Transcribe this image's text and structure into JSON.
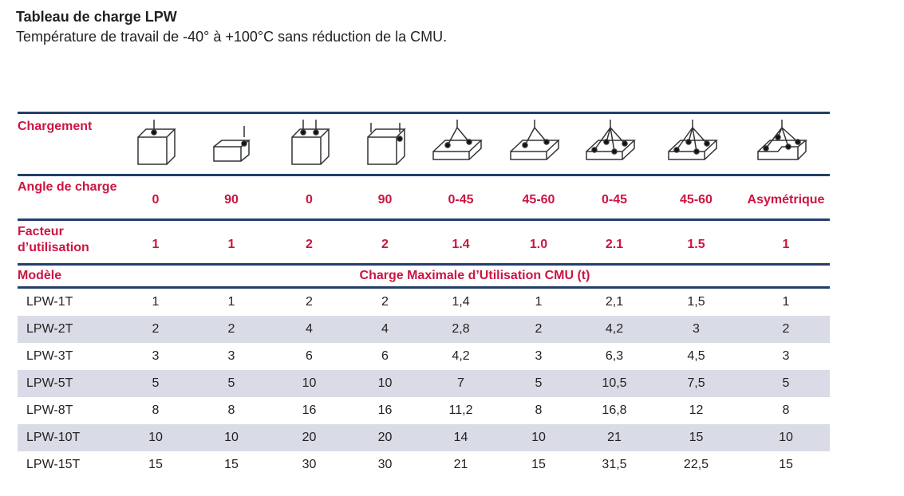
{
  "title": "Tableau de charge LPW",
  "subtitle": "Température de travail de -40° à +100°C sans réduction de la CMU.",
  "colors": {
    "accent": "#cc1541",
    "rule": "#243f6b",
    "stripe": "#d9dce7"
  },
  "table": {
    "row_labels": {
      "loading": "Chargement",
      "angle": "Angle de charge",
      "factor": "Facteur d’utilisation",
      "model": "Modèle",
      "cmu": "Charge Maximale d’Utilisation CMU (t)"
    },
    "icons": [
      "box-single-top-lift-icon",
      "box-single-side-lift-icon",
      "box-two-top-lifts-icon",
      "box-two-side-lifts-icon",
      "plate-two-leg-sling-icon",
      "plate-two-leg-sling-icon",
      "plate-four-leg-sling-icon",
      "plate-four-leg-sling-icon",
      "stepped-plate-asymmetric-sling-icon"
    ],
    "angles": [
      "0",
      "90",
      "0",
      "90",
      "0-45",
      "45-60",
      "0-45",
      "45-60",
      "Asymétrique"
    ],
    "factors": [
      "1",
      "1",
      "2",
      "2",
      "1.4",
      "1.0",
      "2.1",
      "1.5",
      "1"
    ],
    "rows": [
      {
        "model": "LPW-1T",
        "values": [
          "1",
          "1",
          "2",
          "2",
          "1,4",
          "1",
          "2,1",
          "1,5",
          "1"
        ]
      },
      {
        "model": "LPW-2T",
        "values": [
          "2",
          "2",
          "4",
          "4",
          "2,8",
          "2",
          "4,2",
          "3",
          "2"
        ]
      },
      {
        "model": "LPW-3T",
        "values": [
          "3",
          "3",
          "6",
          "6",
          "4,2",
          "3",
          "6,3",
          "4,5",
          "3"
        ]
      },
      {
        "model": "LPW-5T",
        "values": [
          "5",
          "5",
          "10",
          "10",
          "7",
          "5",
          "10,5",
          "7,5",
          "5"
        ]
      },
      {
        "model": "LPW-8T",
        "values": [
          "8",
          "8",
          "16",
          "16",
          "11,2",
          "8",
          "16,8",
          "12",
          "8"
        ]
      },
      {
        "model": "LPW-10T",
        "values": [
          "10",
          "10",
          "20",
          "20",
          "14",
          "10",
          "21",
          "15",
          "10"
        ]
      },
      {
        "model": "LPW-15T",
        "values": [
          "15",
          "15",
          "30",
          "30",
          "21",
          "15",
          "31,5",
          "22,5",
          "15"
        ]
      }
    ]
  }
}
